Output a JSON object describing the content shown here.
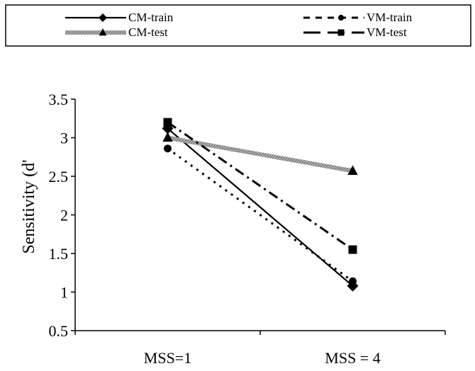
{
  "chart_data": {
    "type": "line",
    "title": "",
    "xlabel": "",
    "ylabel": "Sensitivity (d'",
    "categories": [
      "MSS=1",
      "MSS = 4"
    ],
    "ylim": [
      0.5,
      3.5
    ],
    "yticks": [
      0.5,
      1,
      1.5,
      2,
      2.5,
      3,
      3.5
    ],
    "ytick_labels": [
      "0.5",
      "1",
      "1.5",
      "2",
      "2.5",
      "3",
      "3.5"
    ],
    "grid": false,
    "legend_position": "top",
    "series": [
      {
        "name": "CM-train",
        "values": [
          3.12,
          1.08
        ],
        "color": "#000000",
        "marker": "diamond",
        "line": "solid"
      },
      {
        "name": "VM-train",
        "values": [
          2.86,
          1.14
        ],
        "color": "#000000",
        "marker": "circle",
        "line": "dotted"
      },
      {
        "name": "CM-test",
        "values": [
          3.0,
          2.57
        ],
        "color": "#8c8c8c",
        "marker": "triangle",
        "line": "hatched-thick"
      },
      {
        "name": "VM-test",
        "values": [
          3.2,
          1.55
        ],
        "color": "#000000",
        "marker": "square",
        "line": "dashdot"
      }
    ]
  }
}
